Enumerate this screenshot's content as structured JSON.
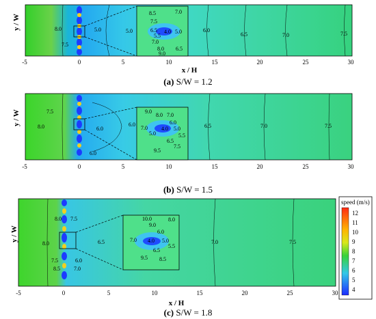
{
  "panels": [
    {
      "id": "a",
      "caption_letter": "(a)",
      "caption_text": "S/W = 1.2",
      "xlabel": "x / H",
      "ylabel": "y / W",
      "xticks": [
        "-5",
        "0",
        "5",
        "10",
        "15",
        "20",
        "25",
        "30"
      ],
      "contour_labels": [
        "8.0",
        "7.5",
        "5.0",
        "5.0",
        "6.0",
        "6.5",
        "7.0",
        "7.5"
      ],
      "inset_labels": [
        "8.5",
        "7.5",
        "6.5",
        "5.5",
        "4.0",
        "5.0",
        "7.0",
        "8.0",
        "9.0",
        "7.0",
        "6.5",
        "7.0"
      ]
    },
    {
      "id": "b",
      "caption_letter": "(b)",
      "caption_text": "S/W = 1.5",
      "xlabel": "x / H",
      "ylabel": "y / W",
      "xticks": [
        "-5",
        "0",
        "5",
        "10",
        "15",
        "20",
        "25",
        "30"
      ],
      "contour_labels": [
        "7.5",
        "8.0",
        "6.0",
        "6.0",
        "6.0",
        "6.5",
        "7.0",
        "7.5"
      ],
      "inset_labels": [
        "9.0",
        "8.0",
        "7.0",
        "6.0",
        "7.0",
        "4.0",
        "5.0",
        "5.0",
        "5.5",
        "6.5",
        "9.5",
        "7.5",
        "7.0"
      ]
    },
    {
      "id": "c",
      "caption_letter": "(c)",
      "caption_text": "S/W = 1.8",
      "xlabel": "x / H",
      "ylabel": "y / W",
      "xticks": [
        "-5",
        "0",
        "5",
        "10",
        "15",
        "20",
        "25",
        "30"
      ],
      "contour_labels": [
        "8.0",
        "7.5",
        "8.0",
        "6.5",
        "7.5",
        "6.0",
        "8.5",
        "7.0",
        "7.0",
        "7.5"
      ],
      "inset_labels": [
        "10.0",
        "9.0",
        "8.0",
        "6.0",
        "7.0",
        "4.0",
        "5.0",
        "5.5",
        "6.5",
        "9.5",
        "8.5"
      ]
    }
  ],
  "colorbar": {
    "title": "speed (m/s)",
    "ticks": [
      "12",
      "11",
      "10",
      "9",
      "8",
      "7",
      "6",
      "5",
      "4"
    ]
  }
}
